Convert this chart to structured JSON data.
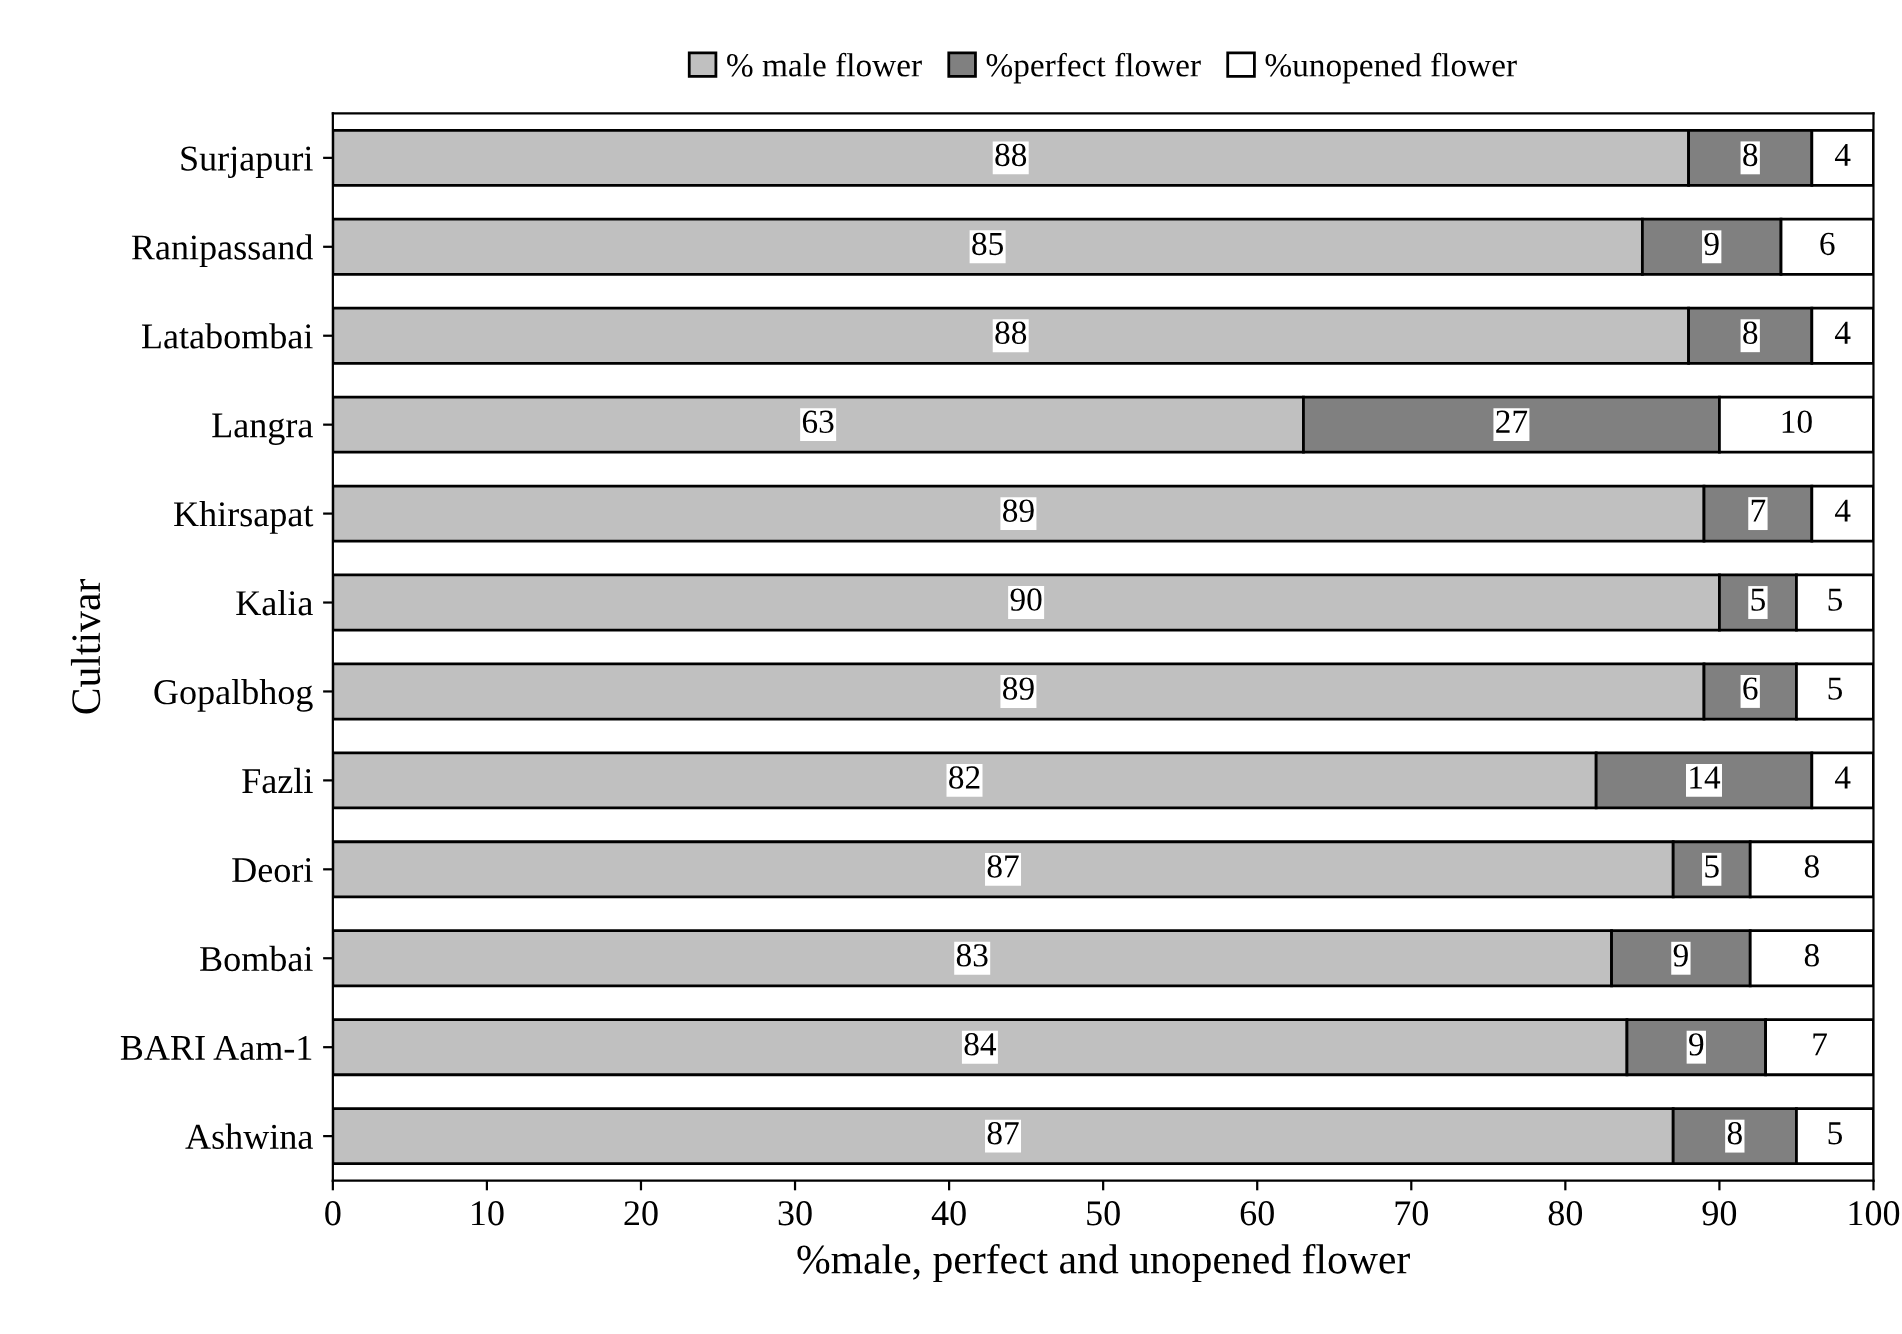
{
  "chart_data": {
    "type": "bar",
    "orientation": "horizontal",
    "stacked": true,
    "data_labels": true,
    "legend": "top",
    "grid": false,
    "xlabel": "%male, perfect and unopened flower",
    "ylabel": "Cultivar",
    "categories": [
      "Surjapuri",
      "Ranipassand",
      "Latabombai",
      "Langra",
      "Khirsapat",
      "Kalia",
      "Gopalbhog",
      "Fazli",
      "Deori",
      "Bombai",
      "BARI Aam-1",
      "Ashwina"
    ],
    "xlim": [
      0,
      100
    ],
    "xticks": [
      0,
      10,
      20,
      30,
      40,
      50,
      60,
      70,
      80,
      90,
      100
    ],
    "series": [
      {
        "name": "% male flower",
        "color": "#c0c0c0",
        "values": [
          88,
          85,
          88,
          63,
          89,
          90,
          89,
          82,
          87,
          83,
          84,
          87
        ]
      },
      {
        "name": "%perfect flower",
        "color": "#808080",
        "values": [
          8,
          9,
          8,
          27,
          7,
          5,
          6,
          14,
          5,
          9,
          9,
          8
        ]
      },
      {
        "name": "%unopened flower",
        "color": "#ffffff",
        "values": [
          4,
          6,
          4,
          10,
          4,
          5,
          5,
          4,
          8,
          8,
          7,
          5
        ]
      }
    ]
  }
}
